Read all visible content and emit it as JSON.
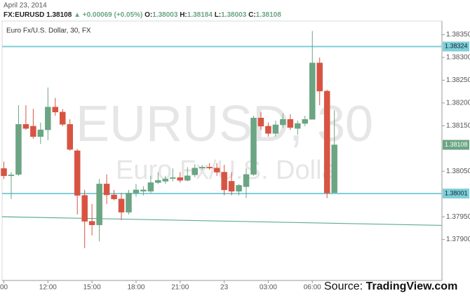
{
  "chart_data": {
    "type": "candlestick",
    "date": "April 23, 2014",
    "symbol": "FX:EURUSD",
    "change": "+0.00069 (+0.05%)",
    "ohlc_labels": [
      "O:",
      "H:",
      "L:",
      "C:"
    ],
    "chart_label": "Euro Fx/U.S. Dollar, 30, FX",
    "watermark": [
      "EURUSD, 30",
      "Euro Fx/U.S. Dolla"
    ],
    "source_label": "Source:",
    "source_name": "TradingView.com",
    "categories": [
      "00",
      null,
      null,
      null,
      null,
      null,
      "12:00",
      null,
      null,
      null,
      null,
      null,
      "15:00",
      null,
      null,
      null,
      null,
      null,
      "18:00",
      null,
      null,
      null,
      null,
      null,
      "21:00",
      null,
      null,
      null,
      null,
      null,
      "23",
      null,
      null,
      null,
      null,
      null,
      "03:00",
      null,
      null,
      null,
      null,
      null,
      "06:00",
      null,
      null,
      null
    ],
    "open": [
      1.38056,
      1.3804,
      1.38043,
      1.38153,
      1.38149,
      1.38126,
      1.38141,
      1.38191,
      1.3818,
      1.38153,
      1.38095,
      1.37997,
      1.3794,
      1.37932,
      1.38022,
      1.37998,
      1.37989,
      1.3796,
      1.38002,
      1.38006,
      1.38006,
      1.38025,
      1.38028,
      1.38034,
      1.38036,
      1.3803,
      1.38042,
      1.38057,
      1.38059,
      1.38057,
      1.38048,
      1.38028,
      1.38006,
      1.38016,
      1.38043,
      1.38167,
      1.38149,
      1.38133,
      1.38152,
      1.38164,
      1.38144,
      1.38155,
      1.38164,
      1.38288,
      1.38226,
      1.38003
    ],
    "high": [
      1.38071,
      1.38048,
      1.38195,
      1.38195,
      1.38187,
      1.38157,
      1.38234,
      1.38211,
      1.38187,
      1.38164,
      1.38099,
      1.38009,
      1.37978,
      1.38033,
      1.38043,
      1.38009,
      1.38002,
      1.38009,
      1.38022,
      1.38017,
      1.3804,
      1.38048,
      1.3804,
      1.38056,
      1.38048,
      1.38059,
      1.38065,
      1.38064,
      1.38068,
      1.38068,
      1.38064,
      1.38048,
      1.38022,
      1.38056,
      1.38172,
      1.3818,
      1.38157,
      1.38161,
      1.38177,
      1.38175,
      1.38161,
      1.38172,
      1.38358,
      1.383,
      1.38229,
      1.38184
    ],
    "low": [
      1.38033,
      1.37989,
      1.3804,
      1.38141,
      1.38121,
      1.3811,
      1.38118,
      1.38172,
      1.38149,
      1.38095,
      1.37955,
      1.37881,
      1.37909,
      1.37896,
      1.37978,
      1.37986,
      1.37943,
      1.37955,
      1.37994,
      1.37997,
      1.38002,
      1.38022,
      1.38022,
      1.38028,
      1.38025,
      1.38028,
      1.38037,
      1.38053,
      1.38053,
      1.3804,
      1.37997,
      1.37997,
      1.37997,
      1.37991,
      1.3804,
      1.38141,
      1.38126,
      1.38126,
      1.38146,
      1.38141,
      1.3813,
      1.38149,
      1.38164,
      1.38195,
      1.37991,
      1.38003
    ],
    "close": [
      1.3804,
      1.38042,
      1.38153,
      1.38144,
      1.38126,
      1.38141,
      1.38191,
      1.3818,
      1.38153,
      1.38098,
      1.37997,
      1.3794,
      1.37932,
      1.38022,
      1.37998,
      1.37989,
      1.3796,
      1.38002,
      1.38009,
      1.38009,
      1.38025,
      1.3803,
      1.38033,
      1.38036,
      1.3803,
      1.3804,
      1.38057,
      1.38059,
      1.38057,
      1.38048,
      1.38009,
      1.38006,
      1.38019,
      1.38043,
      1.38167,
      1.38149,
      1.38133,
      1.38152,
      1.38164,
      1.38146,
      1.38155,
      1.38164,
      1.38288,
      1.38226,
      1.38002,
      1.38108
    ],
    "up_color": "#6ba583",
    "down_color": "#d75442",
    "levels": [
      1.38324,
      1.38001
    ],
    "level_color": "#7fcfd8",
    "trendline": [
      1.3795,
      1.37931
    ],
    "trend_color": "#5eab97",
    "ylim": [
      1.3781,
      1.3838
    ],
    "yticks": [
      {
        "value": 1.379,
        "label": "1.37900"
      },
      {
        "value": 1.3795,
        "label": "1.37950"
      },
      {
        "value": 1.3805,
        "label": "1.38050"
      },
      {
        "value": 1.3815,
        "label": "1.38150"
      },
      {
        "value": 1.382,
        "label": "1.38200"
      },
      {
        "value": 1.3825,
        "label": "1.38250"
      },
      {
        "value": 1.383,
        "label": "1.38300"
      },
      {
        "value": 1.3835,
        "label": "1.38350"
      }
    ],
    "grid": false
  }
}
